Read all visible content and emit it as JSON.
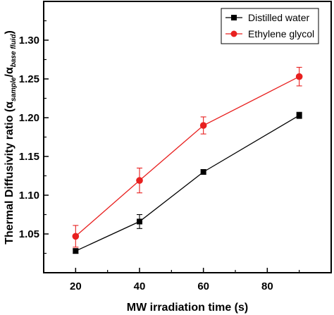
{
  "chart_data": {
    "type": "line",
    "xlabel": "MW irradiation time (s)",
    "ylabel": {
      "main": "Thermal Diffusivity ratio",
      "alpha": "α",
      "sample_sub": "sample",
      "slash": "/",
      "base_sub": "base fluid"
    },
    "xlim": [
      10,
      100
    ],
    "ylim": [
      1.0,
      1.35
    ],
    "x_ticks": [
      20,
      40,
      60,
      80
    ],
    "y_ticks": [
      1.05,
      1.1,
      1.15,
      1.2,
      1.25,
      1.3
    ],
    "y_tick_labels": [
      "1.05",
      "1.10",
      "1.15",
      "1.20",
      "1.25",
      "1.30"
    ],
    "legend_position": "top-right",
    "series": [
      {
        "name": "Distilled water",
        "color": "#000000",
        "marker": "square",
        "x": [
          20,
          40,
          60,
          90
        ],
        "y": [
          1.028,
          1.066,
          1.13,
          1.203
        ],
        "err": [
          0.003,
          0.009,
          0.003,
          0.004
        ]
      },
      {
        "name": "Ethylene glycol",
        "color": "#e8201f",
        "marker": "circle",
        "x": [
          20,
          40,
          60,
          90
        ],
        "y": [
          1.047,
          1.119,
          1.19,
          1.253
        ],
        "err": [
          0.014,
          0.016,
          0.011,
          0.012
        ]
      }
    ]
  }
}
